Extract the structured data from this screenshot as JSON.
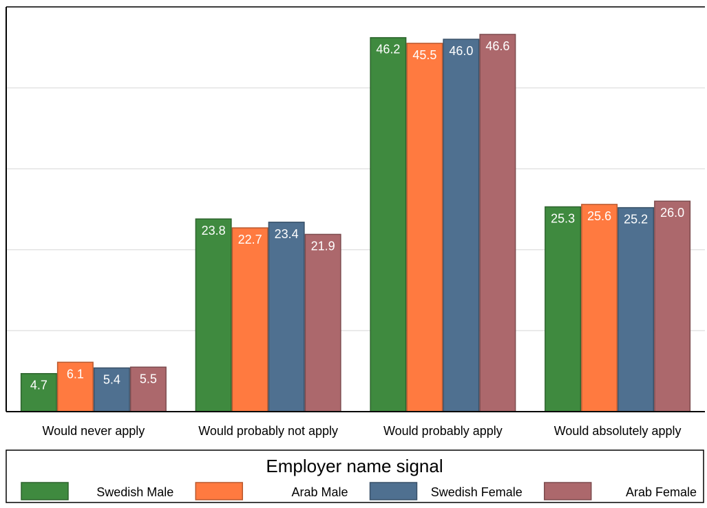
{
  "chart_data": {
    "type": "bar",
    "categories": [
      "Would never apply",
      "Would probably not apply",
      "Would probably apply",
      "Would absolutely apply"
    ],
    "series": [
      {
        "name": "Swedish Male",
        "color": "#3f8a3f",
        "values": [
          4.7,
          23.8,
          46.2,
          25.3
        ]
      },
      {
        "name": "Arab Male",
        "color": "#ff7a40",
        "values": [
          6.1,
          22.7,
          45.5,
          25.6
        ]
      },
      {
        "name": "Swedish Female",
        "color": "#4f7090",
        "values": [
          5.4,
          23.4,
          46.0,
          25.2
        ]
      },
      {
        "name": "Arab Female",
        "color": "#ac686c",
        "values": [
          5.5,
          21.9,
          46.6,
          26.0
        ]
      }
    ],
    "ylim": [
      0,
      50
    ],
    "grid": true,
    "legend": {
      "title": "Employer name signal",
      "position": "bottom"
    }
  }
}
